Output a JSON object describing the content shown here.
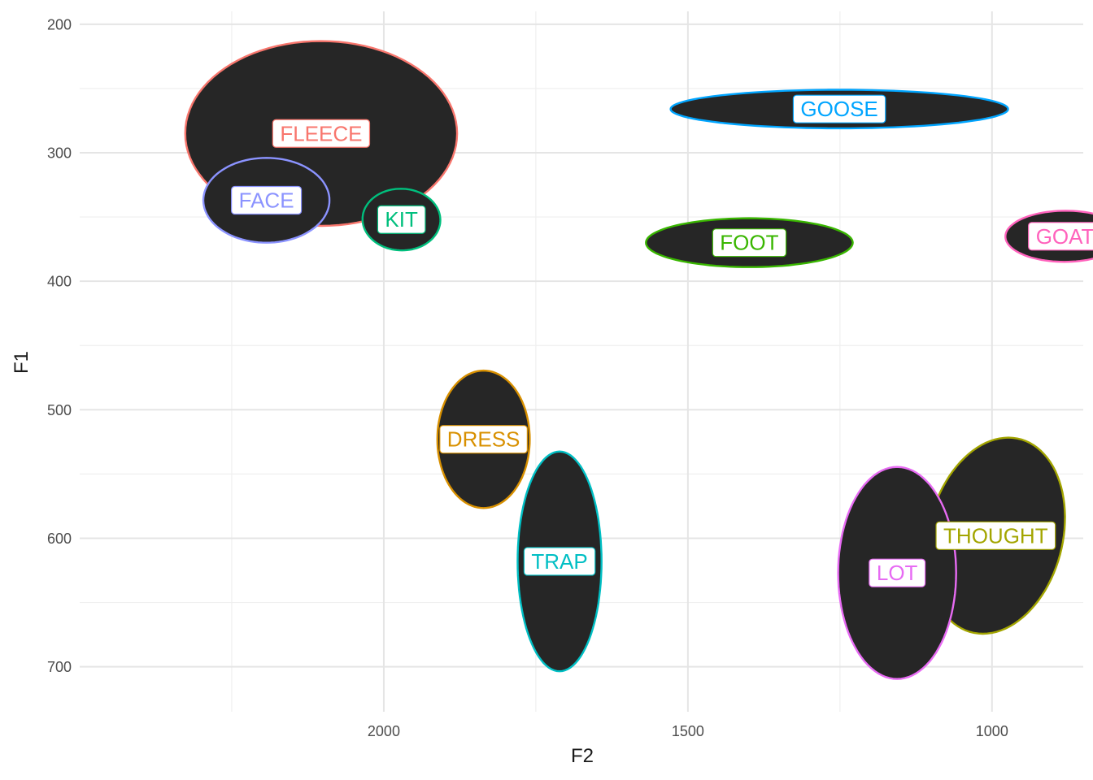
{
  "chart_data": {
    "type": "scatter",
    "title": "",
    "xlabel": "F2",
    "ylabel": "F1",
    "x_reversed": true,
    "y_reversed": true,
    "xlim": [
      2500,
      850
    ],
    "ylim": [
      190,
      735
    ],
    "xticks": [
      2000,
      1500,
      1000
    ],
    "yticks": [
      200,
      300,
      400,
      500,
      600,
      700
    ],
    "grid": true,
    "legend": "none",
    "ellipse_fill": "#262626",
    "series": [
      {
        "name": "FLEECE",
        "color": "#F8766D",
        "f2": 2103,
        "f1": 285,
        "f2_range": [
          2327,
          1880
        ],
        "f1_range": [
          209,
          353
        ]
      },
      {
        "name": "GOOSE",
        "color": "#00A5FF",
        "f2": 1251,
        "f1": 266,
        "f2_range": [
          1531,
          976
        ],
        "f1_range": [
          251,
          281
        ]
      },
      {
        "name": "FACE",
        "color": "#8B93FF",
        "f2": 2193,
        "f1": 337,
        "f2_range": [
          2305,
          2097
        ],
        "f1_range": [
          304,
          370
        ]
      },
      {
        "name": "KIT",
        "color": "#00BF7D",
        "f2": 1971,
        "f1": 352,
        "f2_range": [
          2034,
          1906
        ],
        "f1_range": [
          329,
          377
        ]
      },
      {
        "name": "FOOT",
        "color": "#39B600",
        "f2": 1399,
        "f1": 370,
        "f2_range": [
          1570,
          1230
        ],
        "f1_range": [
          351,
          389
        ]
      },
      {
        "name": "GOAT",
        "color": "#FF62BC",
        "f2": 880,
        "f1": 365,
        "f2_range": [
          979,
          783
        ],
        "f1_range": [
          347,
          387
        ]
      },
      {
        "name": "DRESS",
        "color": "#D89000",
        "f2": 1836,
        "f1": 523,
        "f2_range": [
          1912,
          1760
        ],
        "f1_range": [
          470,
          577
        ]
      },
      {
        "name": "TRAP",
        "color": "#00BFC4",
        "f2": 1711,
        "f1": 618,
        "f2_range": [
          1780,
          1642
        ],
        "f1_range": [
          533,
          704
        ]
      },
      {
        "name": "THOUGHT",
        "color": "#A3A500",
        "f2": 994,
        "f1": 598,
        "f2_range": [
          1087,
          859
        ],
        "f1_range": [
          516,
          669
        ]
      },
      {
        "name": "LOT",
        "color": "#E76BF3",
        "f2": 1156,
        "f1": 627,
        "f2_range": [
          1253,
          1059
        ],
        "f1_range": [
          544,
          709
        ]
      }
    ]
  }
}
